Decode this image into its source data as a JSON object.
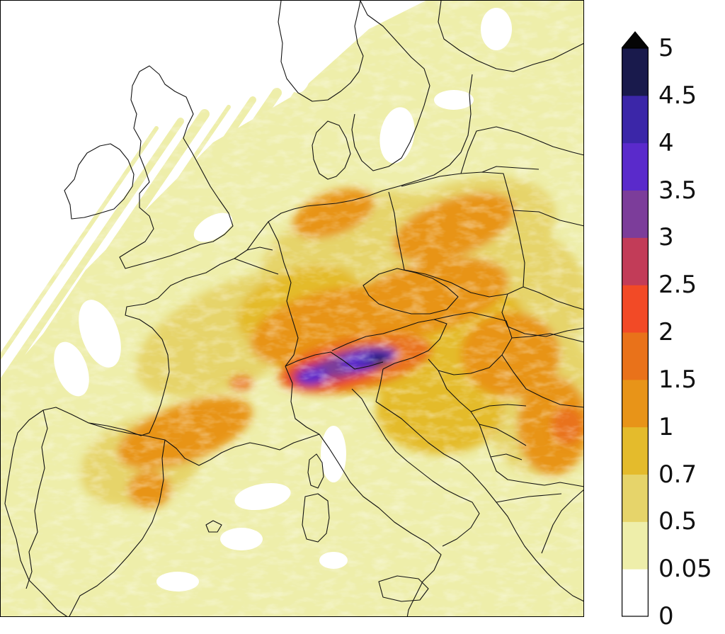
{
  "map": {
    "region": "Europe",
    "fill_colors": {
      "zero": "#ffffff",
      "low": "#eeeeaa",
      "light": "#e6d46a",
      "yellow": "#e4bb2c",
      "orange_light": "#e89418",
      "orange": "#e9721a",
      "red": "#f24a26",
      "crimson": "#c23c58",
      "purple": "#7c3d9a",
      "violet": "#5a2acb",
      "indigo": "#3b26a8",
      "navy": "#191a4c"
    },
    "grid": false
  },
  "colorbar": {
    "labels": [
      "5",
      "4.5",
      "4",
      "3.5",
      "3",
      "2.5",
      "2",
      "1.5",
      "1",
      "0.7",
      "0.5",
      "0.05",
      "0"
    ],
    "bounds": [
      0,
      0.05,
      0.5,
      0.7,
      1,
      1.5,
      2,
      2.5,
      3,
      3.5,
      4,
      4.5,
      5
    ],
    "colors": [
      "#ffffff",
      "#eeeeaa",
      "#e6d46a",
      "#e4bb2c",
      "#e89418",
      "#e9721a",
      "#f24a26",
      "#c23c58",
      "#7c3d9a",
      "#5a2acb",
      "#3b26a8",
      "#191a4c"
    ],
    "extend": "max",
    "extend_color": "#050505"
  }
}
